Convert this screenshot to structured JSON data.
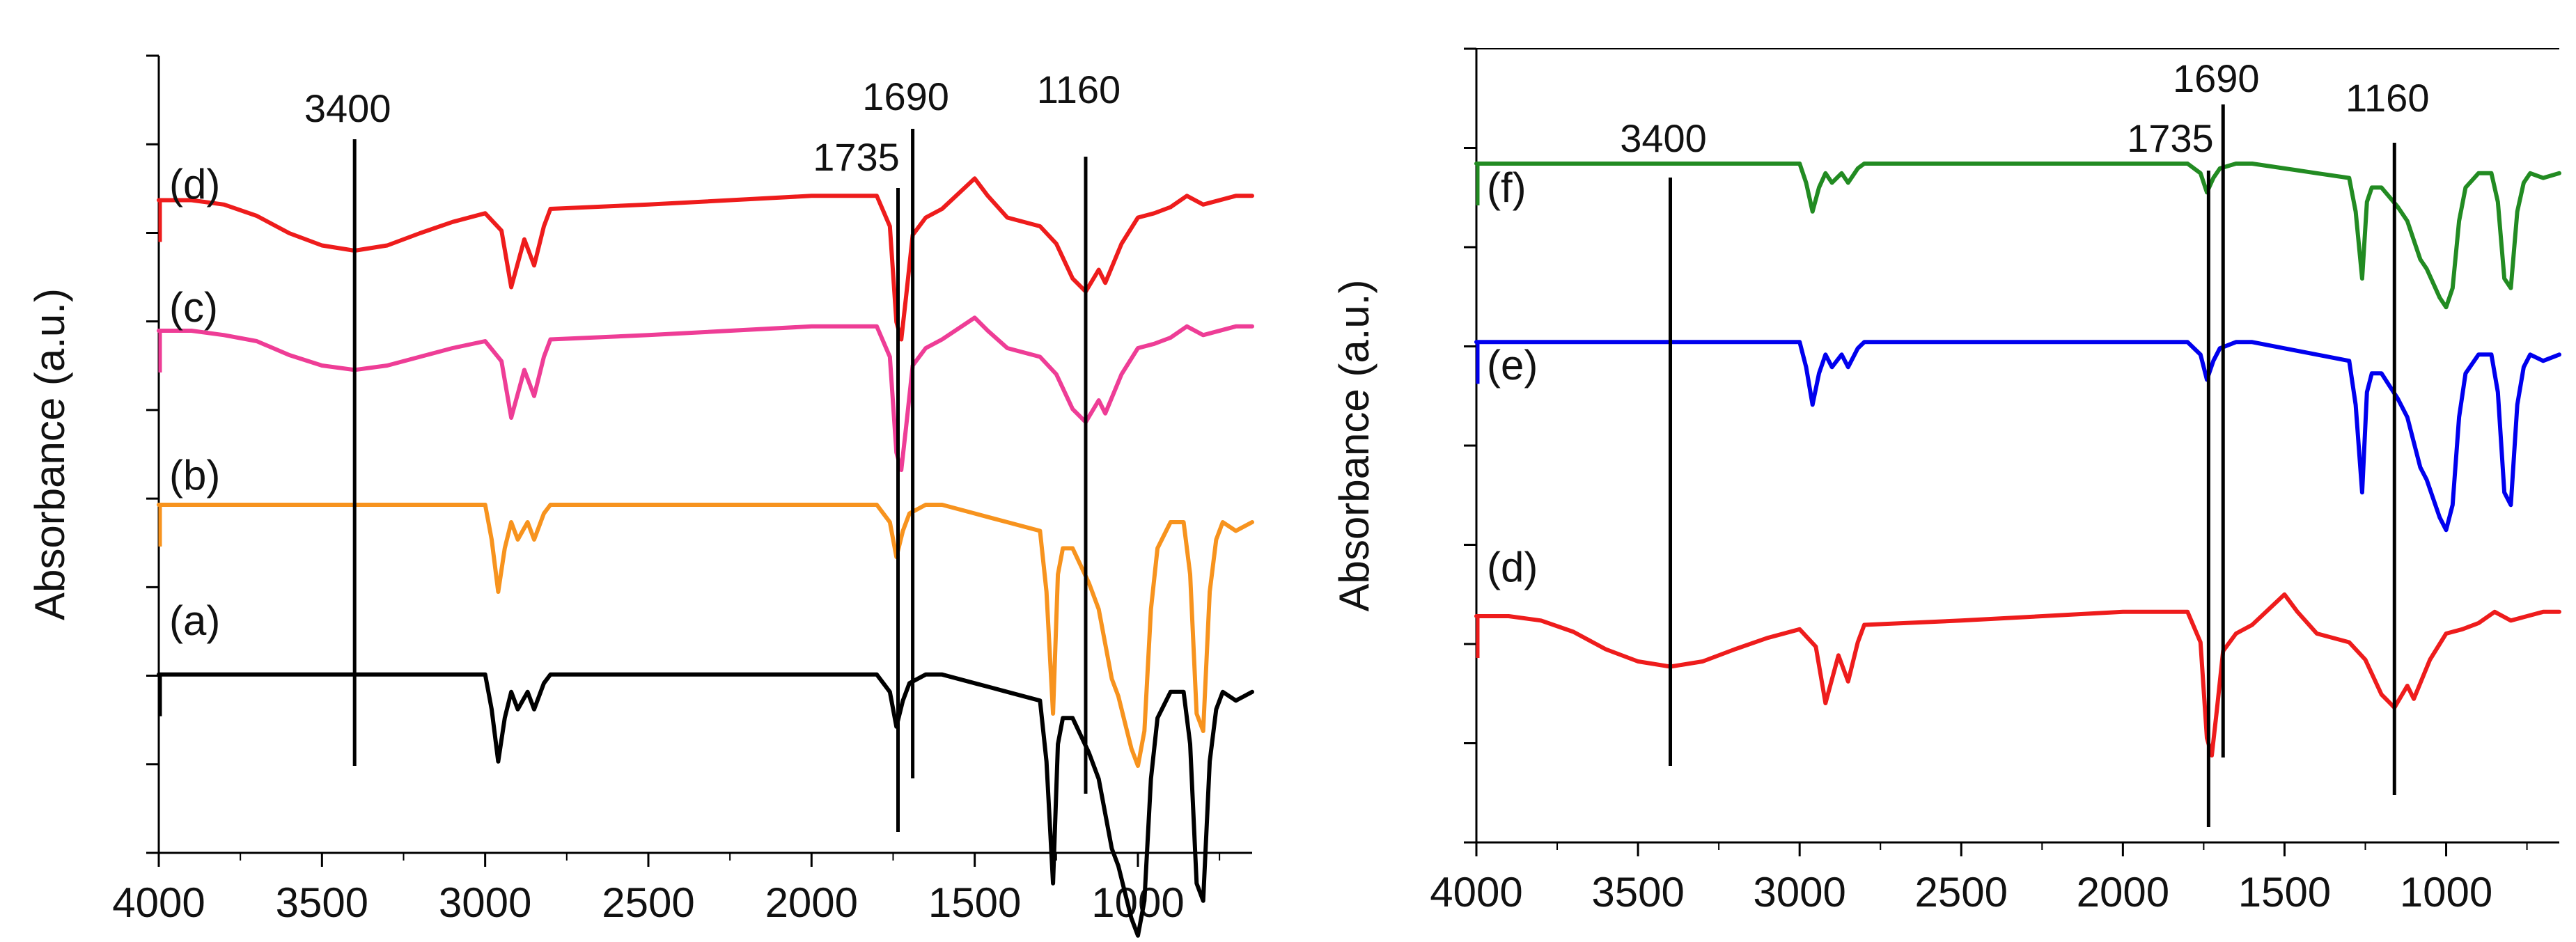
{
  "chart_data": [
    {
      "type": "line",
      "panel": "left",
      "title": "",
      "xlabel": "",
      "ylabel": "Absorbance (a.u.)",
      "xlim": [
        4000,
        650
      ],
      "x_ticks": [
        4000,
        3500,
        3000,
        2500,
        2000,
        1500,
        1000
      ],
      "grid": false,
      "series": [
        {
          "name": "(d)",
          "color": "#ee1c1c",
          "baseline": 7.5,
          "scale": 1.0,
          "x": [
            4000,
            3900,
            3800,
            3700,
            3600,
            3500,
            3400,
            3300,
            3200,
            3100,
            3000,
            2950,
            2920,
            2880,
            2850,
            2820,
            2800,
            2500,
            2000,
            1800,
            1760,
            1740,
            1725,
            1710,
            1690,
            1650,
            1600,
            1500,
            1460,
            1400,
            1300,
            1250,
            1200,
            1160,
            1120,
            1100,
            1050,
            1000,
            950,
            900,
            850,
            800,
            700,
            650
          ],
          "y": [
            0,
            0,
            -0.05,
            -0.18,
            -0.38,
            -0.52,
            -0.58,
            -0.52,
            -0.38,
            -0.25,
            -0.15,
            -0.35,
            -1.0,
            -0.45,
            -0.75,
            -0.3,
            -0.1,
            -0.05,
            0.05,
            0.05,
            -0.3,
            -1.4,
            -1.6,
            -1.1,
            -0.4,
            -0.2,
            -0.1,
            0.25,
            0.05,
            -0.2,
            -0.3,
            -0.5,
            -0.9,
            -1.05,
            -0.8,
            -0.95,
            -0.5,
            -0.2,
            -0.15,
            -0.08,
            0.05,
            -0.05,
            0.05,
            0.05
          ]
        },
        {
          "name": "(c)",
          "color": "#ee3d96",
          "baseline": 6.0,
          "scale": 1.0,
          "x": [
            4000,
            3900,
            3800,
            3700,
            3600,
            3500,
            3400,
            3300,
            3200,
            3100,
            3000,
            2950,
            2920,
            2880,
            2850,
            2820,
            2800,
            2500,
            2000,
            1800,
            1760,
            1740,
            1725,
            1710,
            1690,
            1650,
            1600,
            1500,
            1460,
            1400,
            1300,
            1250,
            1200,
            1160,
            1120,
            1100,
            1050,
            1000,
            950,
            900,
            850,
            800,
            700,
            650
          ],
          "y": [
            0,
            0,
            -0.05,
            -0.12,
            -0.28,
            -0.4,
            -0.45,
            -0.4,
            -0.3,
            -0.2,
            -0.12,
            -0.35,
            -1.0,
            -0.45,
            -0.75,
            -0.3,
            -0.1,
            -0.05,
            0.05,
            0.05,
            -0.3,
            -1.4,
            -1.6,
            -1.1,
            -0.4,
            -0.2,
            -0.1,
            0.15,
            0.0,
            -0.2,
            -0.3,
            -0.5,
            -0.9,
            -1.05,
            -0.8,
            -0.95,
            -0.5,
            -0.2,
            -0.15,
            -0.08,
            0.05,
            -0.05,
            0.05,
            0.05
          ]
        },
        {
          "name": "(b)",
          "color": "#f7931e",
          "baseline": 4.0,
          "scale": 1.0,
          "x": [
            4000,
            3000,
            2980,
            2960,
            2940,
            2920,
            2900,
            2870,
            2850,
            2820,
            2800,
            2500,
            2000,
            1800,
            1760,
            1740,
            1720,
            1700,
            1650,
            1600,
            1500,
            1450,
            1400,
            1300,
            1280,
            1260,
            1245,
            1230,
            1200,
            1150,
            1120,
            1100,
            1080,
            1060,
            1040,
            1020,
            1000,
            980,
            960,
            940,
            900,
            860,
            840,
            820,
            800,
            780,
            760,
            740,
            700,
            650
          ],
          "y": [
            0,
            0,
            -0.4,
            -1.0,
            -0.5,
            -0.2,
            -0.4,
            -0.2,
            -0.4,
            -0.1,
            0,
            0,
            0,
            0,
            -0.2,
            -0.6,
            -0.3,
            -0.1,
            0,
            0,
            -0.1,
            -0.15,
            -0.2,
            -0.3,
            -1.0,
            -2.4,
            -0.8,
            -0.5,
            -0.5,
            -0.9,
            -1.2,
            -1.6,
            -2.0,
            -2.2,
            -2.5,
            -2.8,
            -3.0,
            -2.6,
            -1.2,
            -0.5,
            -0.2,
            -0.2,
            -0.8,
            -2.4,
            -2.6,
            -1.0,
            -0.4,
            -0.2,
            -0.3,
            -0.2
          ]
        },
        {
          "name": "(a)",
          "color": "#000000",
          "baseline": 2.05,
          "scale": 1.0,
          "x": [
            4000,
            3000,
            2980,
            2960,
            2940,
            2920,
            2900,
            2870,
            2850,
            2820,
            2800,
            2500,
            2000,
            1800,
            1760,
            1740,
            1720,
            1700,
            1650,
            1600,
            1500,
            1450,
            1400,
            1300,
            1280,
            1260,
            1245,
            1230,
            1200,
            1150,
            1120,
            1100,
            1080,
            1060,
            1040,
            1020,
            1000,
            980,
            960,
            940,
            900,
            860,
            840,
            820,
            800,
            780,
            760,
            740,
            700,
            650
          ],
          "y": [
            0,
            0,
            -0.4,
            -1.0,
            -0.5,
            -0.2,
            -0.4,
            -0.2,
            -0.4,
            -0.1,
            0,
            0,
            0,
            0,
            -0.2,
            -0.6,
            -0.3,
            -0.1,
            0,
            0,
            -0.1,
            -0.15,
            -0.2,
            -0.3,
            -1.0,
            -2.4,
            -0.8,
            -0.5,
            -0.5,
            -0.9,
            -1.2,
            -1.6,
            -2.0,
            -2.2,
            -2.5,
            -2.8,
            -3.0,
            -2.6,
            -1.2,
            -0.5,
            -0.2,
            -0.2,
            -0.8,
            -2.4,
            -2.6,
            -1.0,
            -0.4,
            -0.2,
            -0.3,
            -0.2
          ]
        }
      ],
      "reference_lines": [
        {
          "x": 3400,
          "label": "3400"
        },
        {
          "x": 1735,
          "label": "1735"
        },
        {
          "x": 1690,
          "label": "1690"
        },
        {
          "x": 1160,
          "label": "1160"
        }
      ],
      "line_labels": [
        "(d)",
        "(c)",
        "(b)",
        "(a)"
      ]
    },
    {
      "type": "line",
      "panel": "right",
      "title": "",
      "xlabel": "",
      "ylabel": "Absorbance (a.u.)",
      "xlim": [
        4000,
        650
      ],
      "x_ticks": [
        4000,
        3500,
        3000,
        2500,
        2000,
        1500,
        1000
      ],
      "grid": false,
      "series": [
        {
          "name": "(f)",
          "color": "#228b22",
          "baseline": 7.8,
          "scale": 0.55,
          "x": [
            4000,
            3000,
            2980,
            2960,
            2940,
            2920,
            2900,
            2870,
            2850,
            2820,
            2800,
            2500,
            2000,
            1800,
            1760,
            1740,
            1720,
            1700,
            1650,
            1600,
            1500,
            1450,
            1400,
            1300,
            1280,
            1260,
            1245,
            1230,
            1200,
            1150,
            1120,
            1100,
            1080,
            1060,
            1040,
            1020,
            1000,
            980,
            960,
            940,
            900,
            860,
            840,
            820,
            800,
            780,
            760,
            740,
            700,
            650
          ],
          "y": [
            0,
            0,
            -0.4,
            -1.0,
            -0.5,
            -0.2,
            -0.4,
            -0.2,
            -0.4,
            -0.1,
            0,
            0,
            0,
            0,
            -0.2,
            -0.6,
            -0.3,
            -0.1,
            0,
            0,
            -0.1,
            -0.15,
            -0.2,
            -0.3,
            -1.0,
            -2.4,
            -0.8,
            -0.5,
            -0.5,
            -0.9,
            -1.2,
            -1.6,
            -2.0,
            -2.2,
            -2.5,
            -2.8,
            -3.0,
            -2.6,
            -1.2,
            -0.5,
            -0.2,
            -0.2,
            -0.8,
            -2.4,
            -2.6,
            -1.0,
            -0.4,
            -0.2,
            -0.3,
            -0.2
          ]
        },
        {
          "name": "(e)",
          "color": "#0000ee",
          "baseline": 5.75,
          "scale": 0.72,
          "x": [
            4000,
            3000,
            2980,
            2960,
            2940,
            2920,
            2900,
            2870,
            2850,
            2820,
            2800,
            2500,
            2000,
            1800,
            1760,
            1740,
            1720,
            1700,
            1650,
            1600,
            1500,
            1450,
            1400,
            1300,
            1280,
            1260,
            1245,
            1230,
            1200,
            1150,
            1120,
            1100,
            1080,
            1060,
            1040,
            1020,
            1000,
            980,
            960,
            940,
            900,
            860,
            840,
            820,
            800,
            780,
            760,
            740,
            700,
            650
          ],
          "y": [
            0,
            0,
            -0.4,
            -1.0,
            -0.5,
            -0.2,
            -0.4,
            -0.2,
            -0.4,
            -0.1,
            0,
            0,
            0,
            0,
            -0.2,
            -0.6,
            -0.3,
            -0.1,
            0,
            0,
            -0.1,
            -0.15,
            -0.2,
            -0.3,
            -1.0,
            -2.4,
            -0.8,
            -0.5,
            -0.5,
            -0.9,
            -1.2,
            -1.6,
            -2.0,
            -2.2,
            -2.5,
            -2.8,
            -3.0,
            -2.6,
            -1.2,
            -0.5,
            -0.2,
            -0.2,
            -0.8,
            -2.4,
            -2.6,
            -1.0,
            -0.4,
            -0.2,
            -0.3,
            -0.2
          ]
        },
        {
          "name": "(d)",
          "color": "#ee1c1c",
          "baseline": 2.6,
          "scale": 1.0,
          "x": [
            4000,
            3900,
            3800,
            3700,
            3600,
            3500,
            3400,
            3300,
            3200,
            3100,
            3000,
            2950,
            2920,
            2880,
            2850,
            2820,
            2800,
            2500,
            2000,
            1800,
            1760,
            1740,
            1725,
            1710,
            1690,
            1650,
            1600,
            1500,
            1460,
            1400,
            1300,
            1250,
            1200,
            1160,
            1120,
            1100,
            1050,
            1000,
            950,
            900,
            850,
            800,
            700,
            650
          ],
          "y": [
            0,
            0,
            -0.05,
            -0.18,
            -0.38,
            -0.52,
            -0.58,
            -0.52,
            -0.38,
            -0.25,
            -0.15,
            -0.35,
            -1.0,
            -0.45,
            -0.75,
            -0.3,
            -0.1,
            -0.05,
            0.05,
            0.05,
            -0.3,
            -1.4,
            -1.6,
            -1.1,
            -0.4,
            -0.2,
            -0.1,
            0.25,
            0.05,
            -0.2,
            -0.3,
            -0.5,
            -0.9,
            -1.05,
            -0.8,
            -0.95,
            -0.5,
            -0.2,
            -0.15,
            -0.08,
            0.05,
            -0.05,
            0.05,
            0.05
          ]
        }
      ],
      "reference_lines": [
        {
          "x": 3400,
          "label": "3400"
        },
        {
          "x": 1735,
          "label": "1735"
        },
        {
          "x": 1690,
          "label": "1690"
        },
        {
          "x": 1160,
          "label": "1160"
        }
      ],
      "line_labels": [
        "(f)",
        "(e)",
        "(d)"
      ]
    }
  ]
}
